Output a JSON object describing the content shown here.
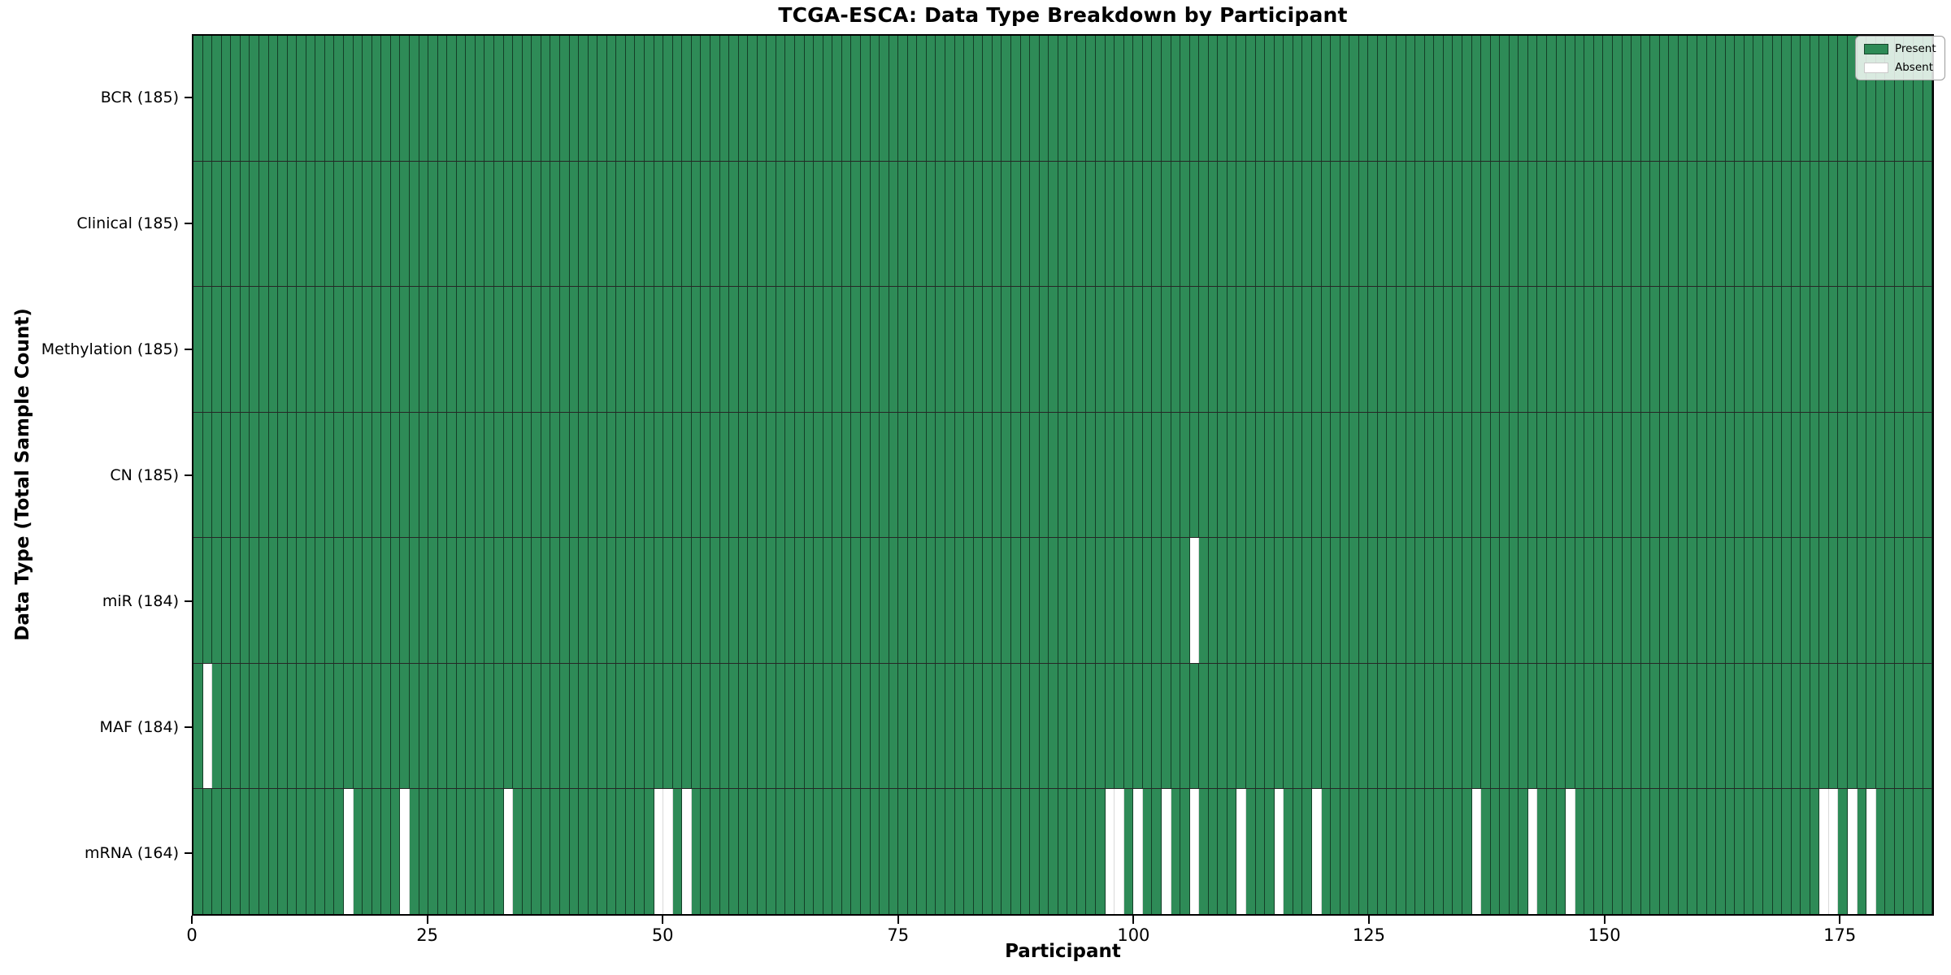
{
  "title": "TCGA-ESCA: Data Type Breakdown by Participant",
  "axes": {
    "xlabel": "Participant",
    "ylabel": "Data Type (Total Sample Count)"
  },
  "legend": {
    "present_label": "Present",
    "absent_label": "Absent"
  },
  "colors": {
    "present": "#2e8b57",
    "absent": "#ffffff",
    "cell_edge": "rgba(0,0,0,0.55)",
    "spine": "#000000"
  },
  "chart_data": {
    "type": "heatmap",
    "title": "TCGA-ESCA: Data Type Breakdown by Participant",
    "xlabel": "Participant",
    "ylabel": "Data Type (Total Sample Count)",
    "n_participants": 185,
    "x_range": [
      0,
      185
    ],
    "x_ticks": [
      0,
      25,
      50,
      75,
      100,
      125,
      150,
      175
    ],
    "grid": "cell-borders",
    "legend_position": "upper right",
    "legend": [
      {
        "label": "Present",
        "color": "#2e8b57"
      },
      {
        "label": "Absent",
        "color": "#ffffff"
      }
    ],
    "value_encoding": {
      "present": 1,
      "absent": 0
    },
    "rows": [
      {
        "label": "BCR (185)",
        "data_type": "BCR",
        "total_samples": 185,
        "absent_participants": []
      },
      {
        "label": "Clinical (185)",
        "data_type": "Clinical",
        "total_samples": 185,
        "absent_participants": []
      },
      {
        "label": "Methylation (185)",
        "data_type": "Methylation",
        "total_samples": 185,
        "absent_participants": []
      },
      {
        "label": "CN (185)",
        "data_type": "CN",
        "total_samples": 185,
        "absent_participants": []
      },
      {
        "label": "miR (184)",
        "data_type": "miR",
        "total_samples": 184,
        "absent_participants": [
          106
        ]
      },
      {
        "label": "MAF (184)",
        "data_type": "MAF",
        "total_samples": 184,
        "absent_participants": [
          1
        ]
      },
      {
        "label": "mRNA (164)",
        "data_type": "mRNA",
        "total_samples": 164,
        "absent_participants": [
          16,
          22,
          33,
          49,
          50,
          52,
          97,
          98,
          100,
          103,
          106,
          111,
          115,
          119,
          136,
          142,
          146,
          173,
          174,
          176,
          178
        ]
      }
    ]
  }
}
